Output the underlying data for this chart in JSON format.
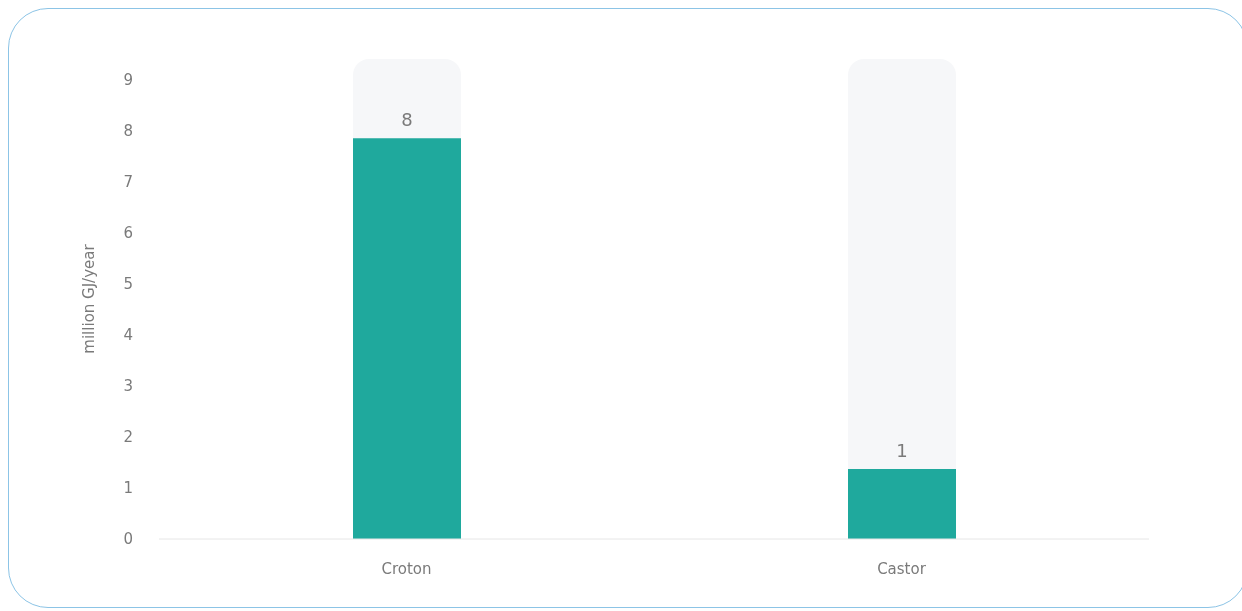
{
  "chart_data": {
    "type": "bar",
    "ylabel": "million GJ/year",
    "categories": [
      "Croton",
      "Castor"
    ],
    "values": [
      7.85,
      1.37
    ],
    "value_labels": [
      "8",
      "1"
    ],
    "color": "#1fa99d",
    "ylim": [
      0,
      9.4
    ],
    "yticks": [
      0,
      1,
      2,
      3,
      4,
      5,
      6,
      7,
      8,
      9
    ]
  }
}
